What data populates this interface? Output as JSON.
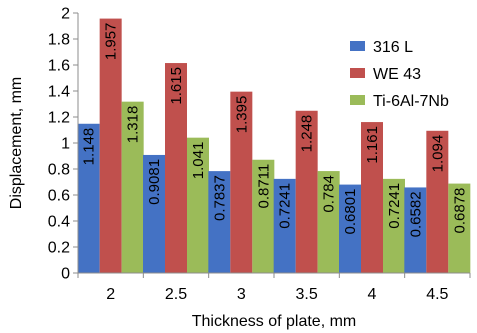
{
  "chart_data": {
    "type": "bar",
    "xlabel": "Thickness of plate, mm",
    "ylabel": "Displacement, mm",
    "ylim": [
      0,
      2
    ],
    "yticks": [
      "0",
      "0.2",
      "0.4",
      "0.6",
      "0.8",
      "1",
      "1.2",
      "1.4",
      "1.6",
      "1.8",
      "2"
    ],
    "categories": [
      "2",
      "2.5",
      "3",
      "3.5",
      "4",
      "4.5"
    ],
    "series": [
      {
        "name": "316 L",
        "color": "#4472C4",
        "values": [
          1.148,
          0.9081,
          0.7837,
          0.7241,
          0.6801,
          0.6582
        ],
        "labels": [
          "1.148",
          "0.9081",
          "0.7837",
          "0.7241",
          "0.6801",
          "0.6582"
        ]
      },
      {
        "name": "WE 43",
        "color": "#C0504D",
        "values": [
          1.957,
          1.615,
          1.395,
          1.248,
          1.161,
          1.094
        ],
        "labels": [
          "1.957",
          "1.615",
          "1.395",
          "1.248",
          "1.161",
          "1.094"
        ]
      },
      {
        "name": "Ti-6Al-7Nb",
        "color": "#9BBB59",
        "values": [
          1.318,
          1.041,
          0.8711,
          0.784,
          0.7241,
          0.6878
        ],
        "labels": [
          "1.318",
          "1.041",
          "0.8711",
          "0.784",
          "0.7241",
          "0.6878"
        ]
      }
    ],
    "grid": false,
    "legend_position": "right"
  }
}
